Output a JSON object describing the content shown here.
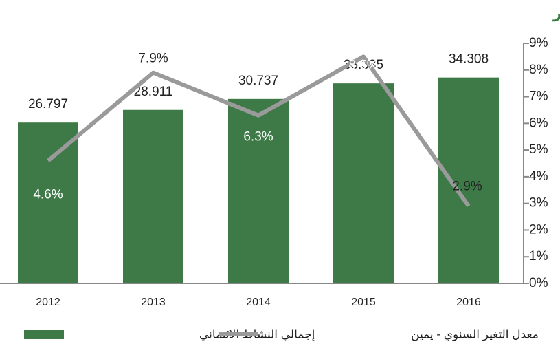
{
  "chart_data": {
    "type": "bar-line",
    "title": "تطور حجم التسهيلات الإئتمانية الممنوحة من البنوك المحلية الكويتية في ديسمبر",
    "categories": [
      "2012",
      "2013",
      "2014",
      "2015",
      "2016"
    ],
    "series": [
      {
        "name": "إجمالي النشاط الائتماني",
        "type": "bar",
        "color": "#3d7a47",
        "values": [
          26.797,
          28.911,
          30.737,
          33.335,
          34.308
        ]
      },
      {
        "name": "معدل التغير السنوي - يمين",
        "type": "line",
        "color": "#9a9a9a",
        "axis": "y2",
        "values": [
          4.6,
          7.9,
          6.3,
          8.5,
          2.9
        ],
        "value_labels": [
          "4.6%",
          "7.9%",
          "6.3%",
          "8.5%",
          "2.9%"
        ]
      }
    ],
    "ylim": [
      0,
      40
    ],
    "y2lim": [
      0,
      9
    ],
    "y2ticks": [
      {
        "value": 0,
        "label": "0%"
      },
      {
        "value": 1,
        "label": "1%"
      },
      {
        "value": 2,
        "label": "2%"
      },
      {
        "value": 3,
        "label": "3%"
      },
      {
        "value": 4,
        "label": "4%"
      },
      {
        "value": 5,
        "label": "5%"
      },
      {
        "value": 6,
        "label": "6%"
      },
      {
        "value": 7,
        "label": "7%"
      },
      {
        "value": 8,
        "label": "8%"
      },
      {
        "value": 9,
        "label": "9%"
      }
    ]
  }
}
